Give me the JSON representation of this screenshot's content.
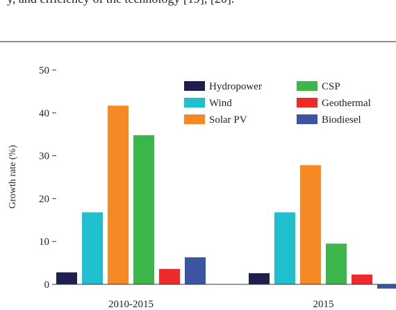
{
  "page_text": "y, and efficiency of the technology [19], [20].",
  "chart_data": {
    "type": "bar",
    "y_label": "Growth rate (%)",
    "categories": [
      "2010-2015",
      "2015"
    ],
    "series": [
      {
        "name": "Hydropower",
        "color": "#1f1f4f",
        "values": [
          2.8,
          2.6
        ]
      },
      {
        "name": "Wind",
        "color": "#1fbfcf",
        "values": [
          16.8,
          16.8
        ]
      },
      {
        "name": "Solar PV",
        "color": "#f58a25",
        "values": [
          41.7,
          27.8
        ]
      },
      {
        "name": "CSP",
        "color": "#3cb54a",
        "values": [
          34.8,
          9.5
        ]
      },
      {
        "name": "Geothermal",
        "color": "#ee2a2a",
        "values": [
          3.6,
          2.3
        ]
      },
      {
        "name": "Biodiesel",
        "color": "#3b55a3",
        "values": [
          6.3,
          -1.0
        ]
      }
    ],
    "ylim": [
      -2,
      50
    ],
    "yticks": [
      0,
      10,
      20,
      30,
      40,
      50
    ],
    "grid": false,
    "legend": "upper right"
  }
}
